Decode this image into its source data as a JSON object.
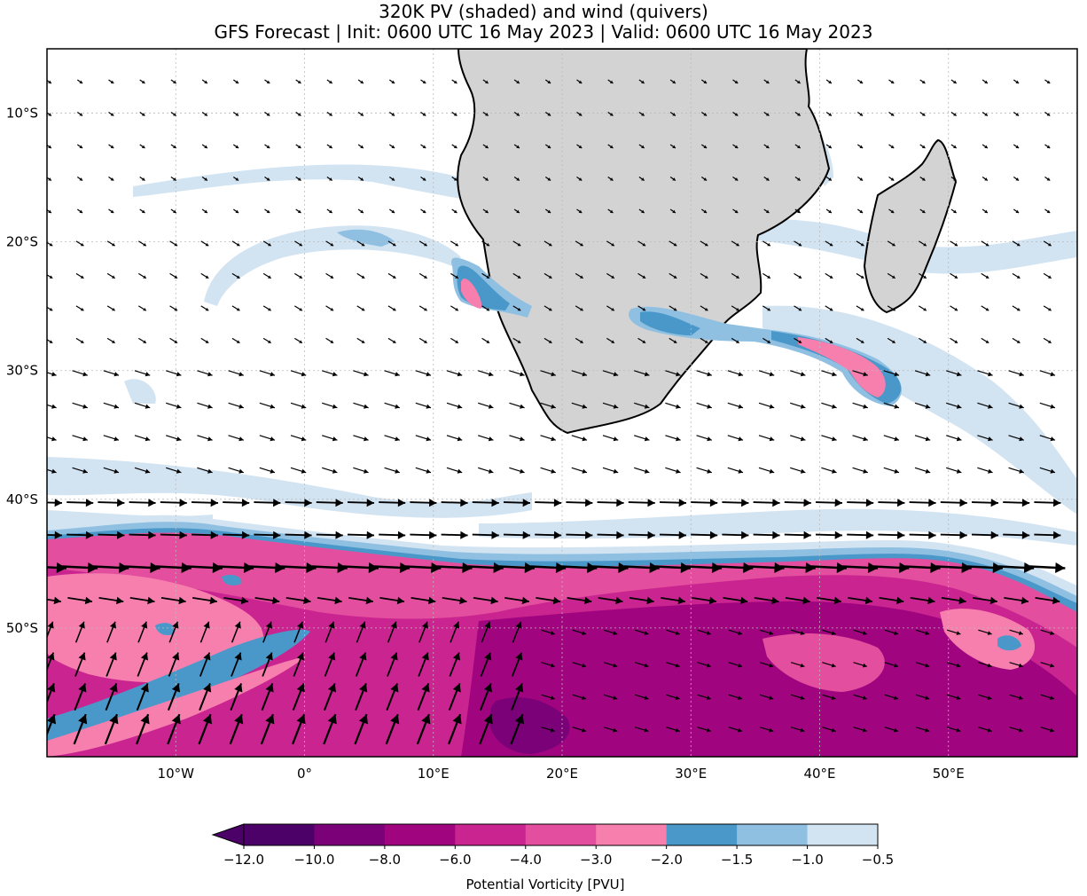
{
  "title": {
    "line1": "320K PV (shaded) and wind (quivers)",
    "line2": "GFS Forecast | Init: 0600 UTC 16 May 2023 | Valid: 0600 UTC 16 May 2023"
  },
  "axes": {
    "lon_ticks": [
      {
        "label": "10°W",
        "value": -10
      },
      {
        "label": "0°",
        "value": 0
      },
      {
        "label": "10°E",
        "value": 10
      },
      {
        "label": "20°E",
        "value": 20
      },
      {
        "label": "30°E",
        "value": 30
      },
      {
        "label": "40°E",
        "value": 40
      },
      {
        "label": "50°E",
        "value": 50
      }
    ],
    "lat_ticks": [
      {
        "label": "10°S",
        "value": -10
      },
      {
        "label": "20°S",
        "value": -20
      },
      {
        "label": "30°S",
        "value": -30
      },
      {
        "label": "40°S",
        "value": -40
      },
      {
        "label": "50°S",
        "value": -50
      }
    ],
    "lon_range": [
      -20,
      60
    ],
    "lat_range": [
      -60,
      -5
    ]
  },
  "colorbar": {
    "label": "Potential Vorticity [PVU]",
    "extend": "min",
    "levels": [
      "−12.0",
      "−10.0",
      "−8.0",
      "−6.0",
      "−4.0",
      "−3.0",
      "−2.0",
      "−1.5",
      "−1.0",
      "−0.5"
    ],
    "colors": [
      "#4b0168",
      "#7a0177",
      "#a0057f",
      "#c9248f",
      "#e44e9e",
      "#f67fae",
      "#4a98ca",
      "#8fc0e2",
      "#d2e3f2"
    ],
    "extend_color": "#4b0168"
  },
  "colors": {
    "land": "#d3d3d3",
    "ocean": "#ffffff",
    "coast": "#000000"
  }
}
